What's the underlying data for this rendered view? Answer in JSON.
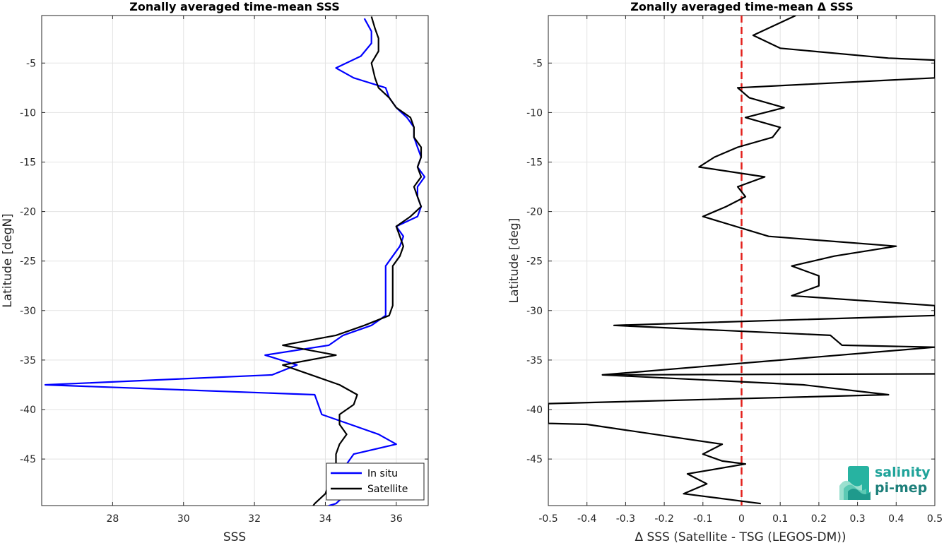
{
  "chart_data": [
    {
      "type": "line",
      "title": "Zonally averaged time-mean SSS",
      "xlabel": "SSS",
      "ylabel": "Latitude [degN]",
      "xlim": [
        26,
        36.9
      ],
      "ylim": [
        -49.7,
        -0.2
      ],
      "xticks": [
        28,
        30,
        32,
        34,
        36
      ],
      "yticks": [
        -5,
        -10,
        -15,
        -20,
        -25,
        -30,
        -35,
        -40,
        -45
      ],
      "grid": true,
      "legend": "bottom-right",
      "series": [
        {
          "name": "In situ",
          "color": "#0000ff",
          "x": [
            35.1,
            35.3,
            35.3,
            35.0,
            34.3,
            34.8,
            35.7,
            35.8,
            36.0,
            36.3,
            36.5,
            36.5,
            36.6,
            36.7,
            36.6,
            36.8,
            36.6,
            36.6,
            36.7,
            36.6,
            36.0,
            36.2,
            36.1,
            35.9,
            35.7,
            35.7,
            35.7,
            35.7,
            35.7,
            35.7,
            35.3,
            34.5,
            34.1,
            32.3,
            33.2,
            32.5,
            26.1,
            33.7,
            33.8,
            33.9,
            34.7,
            35.5,
            36.0,
            34.8,
            34.6,
            34.6,
            34.5,
            34.6,
            34.3,
            34.1,
            34.1,
            33.6
          ],
          "y": [
            -0.5,
            -1.8,
            -3.0,
            -4.3,
            -5.5,
            -6.5,
            -7.5,
            -8.5,
            -9.5,
            -10.5,
            -11.5,
            -12.5,
            -13.5,
            -14.5,
            -15.5,
            -16.5,
            -17.5,
            -18.5,
            -19.5,
            -20.5,
            -21.5,
            -22.5,
            -23.5,
            -24.5,
            -25.5,
            -26.5,
            -27.5,
            -28.5,
            -29.5,
            -30.5,
            -31.5,
            -32.5,
            -33.5,
            -34.5,
            -35.5,
            -36.5,
            -37.5,
            -38.5,
            -39.5,
            -40.5,
            -41.5,
            -42.5,
            -43.5,
            -44.5,
            -45.5,
            -46.5,
            -47.5,
            -48.5,
            -49.5,
            -49.7,
            -49.9,
            -50.0
          ]
        },
        {
          "name": "Satellite",
          "color": "#000000",
          "x": [
            35.3,
            35.4,
            35.5,
            35.5,
            35.3,
            35.4,
            35.5,
            35.8,
            36.0,
            36.4,
            36.5,
            36.5,
            36.7,
            36.7,
            36.6,
            36.7,
            36.5,
            36.6,
            36.7,
            36.4,
            36.0,
            36.1,
            36.2,
            36.1,
            35.9,
            35.9,
            35.9,
            35.9,
            35.9,
            35.8,
            35.1,
            34.3,
            32.8,
            34.3,
            32.8,
            33.6,
            34.4,
            34.9,
            34.8,
            34.4,
            34.4,
            34.6,
            34.4,
            34.3,
            34.3,
            34.2,
            34.1,
            34.0,
            33.7,
            33.6
          ],
          "y": [
            -0.3,
            -1.5,
            -2.5,
            -3.8,
            -5.0,
            -6.5,
            -7.5,
            -8.5,
            -9.5,
            -10.5,
            -11.5,
            -12.5,
            -13.5,
            -14.5,
            -15.5,
            -16.5,
            -17.5,
            -18.5,
            -19.5,
            -20.5,
            -21.5,
            -22.5,
            -23.5,
            -24.5,
            -25.5,
            -26.5,
            -27.5,
            -28.5,
            -29.5,
            -30.5,
            -31.5,
            -32.5,
            -33.5,
            -34.5,
            -35.5,
            -36.5,
            -37.5,
            -38.5,
            -39.5,
            -40.5,
            -41.5,
            -42.5,
            -43.5,
            -44.5,
            -45.5,
            -46.5,
            -47.5,
            -48.5,
            -49.5,
            -50.0
          ]
        }
      ]
    },
    {
      "type": "line",
      "title": "Zonally averaged time-mean Δ SSS",
      "xlabel": "Δ SSS (Satellite - TSG (LEGOS-DM))",
      "ylabel": "Latitude [deg]",
      "xlim": [
        -0.5,
        0.5
      ],
      "ylim": [
        -49.7,
        -0.2
      ],
      "xticks": [
        -0.5,
        -0.4,
        -0.3,
        -0.2,
        -0.1,
        0,
        0.1,
        0.2,
        0.3,
        0.4,
        0.5
      ],
      "xticklabels": [
        "-0.5",
        "-0.4",
        "-0.3",
        "-0.2",
        "-0.1",
        "0",
        "0.1",
        "0.2",
        "0.3",
        "0.4",
        "0.5"
      ],
      "yticks": [
        -5,
        -10,
        -15,
        -20,
        -25,
        -30,
        -35,
        -40,
        -45
      ],
      "grid": true,
      "reference_line": {
        "x": 0,
        "color": "#e3201b",
        "style": "dashed"
      },
      "series": [
        {
          "name": "",
          "color": "#000000",
          "x": [
            0.14,
            0.03,
            0.1,
            0.38,
            0.5,
            0.5,
            0.5,
            -0.01,
            0.02,
            0.11,
            0.01,
            0.1,
            0.08,
            -0.01,
            -0.07,
            -0.11,
            0.06,
            -0.01,
            0.01,
            -0.04,
            -0.1,
            0.07,
            0.4,
            0.24,
            0.13,
            0.2,
            0.2,
            0.13,
            0.5,
            0.5,
            -0.33,
            0.23,
            0.26,
            0.5,
            -0.36,
            0.5,
            -0.36,
            0.16,
            0.38,
            -0.5,
            -0.5,
            -0.4,
            -0.05,
            -0.1,
            -0.05,
            0.01,
            -0.14,
            -0.09,
            -0.15,
            0.05
          ],
          "y": [
            -0.2,
            -2.2,
            -3.5,
            -4.5,
            -4.7,
            -5.5,
            -6.5,
            -7.5,
            -8.5,
            -9.5,
            -10.5,
            -11.5,
            -12.5,
            -13.5,
            -14.5,
            -15.5,
            -16.5,
            -17.5,
            -18.5,
            -19.5,
            -20.5,
            -22.5,
            -23.5,
            -24.5,
            -25.5,
            -26.5,
            -27.5,
            -28.5,
            -29.5,
            -30.5,
            -31.5,
            -32.5,
            -33.5,
            -33.7,
            -36.5,
            -36.4,
            -36.5,
            -37.5,
            -38.5,
            -39.4,
            -41.4,
            -41.5,
            -43.5,
            -44.5,
            -45.2,
            -45.5,
            -46.5,
            -47.5,
            -48.5,
            -49.5
          ]
        }
      ]
    }
  ],
  "legend_items": [
    {
      "label": "In situ",
      "color": "#0000ff"
    },
    {
      "label": "Satellite",
      "color": "#000000"
    }
  ],
  "logo": {
    "line1": "salinity",
    "line2": "pi-mep"
  }
}
